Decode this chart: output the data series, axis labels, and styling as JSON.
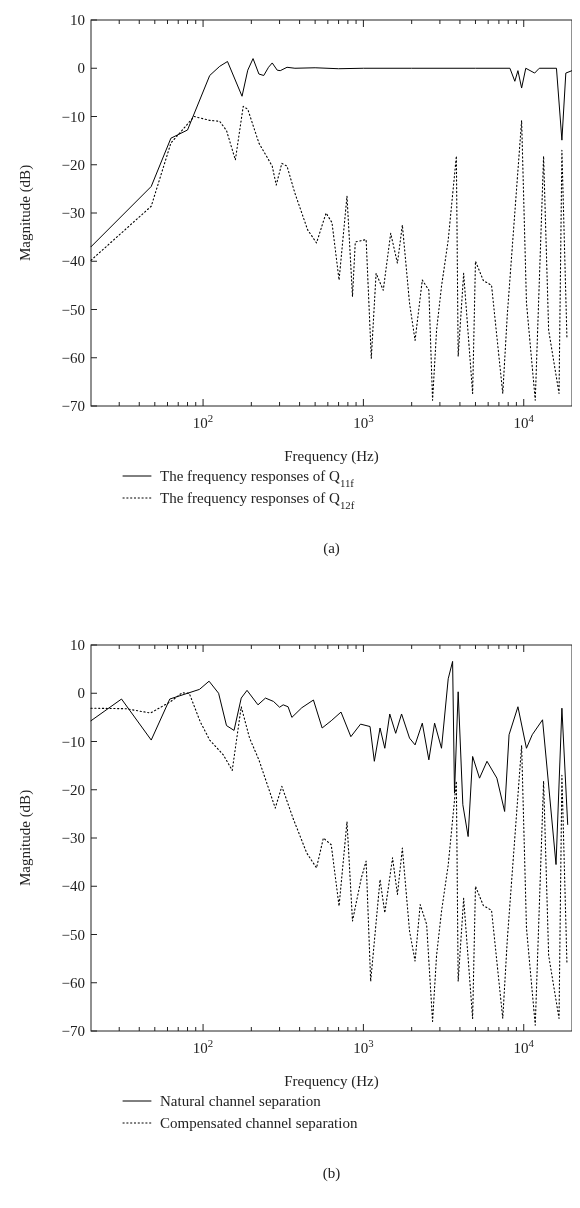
{
  "chart_data": [
    {
      "type": "line",
      "xlabel": "Frequency (Hz)",
      "ylabel": "Magnitude (dB)",
      "log": "x",
      "grid": false,
      "legend": "bottom",
      "xlim": [
        20,
        20000
      ],
      "ylim": [
        -70,
        10
      ],
      "xticks": [
        {
          "value": 30,
          "label": null
        },
        {
          "value": 40,
          "label": null
        },
        {
          "value": 50,
          "label": null
        },
        {
          "value": 60,
          "label": null
        },
        {
          "value": 70,
          "label": null
        },
        {
          "value": 80,
          "label": null
        },
        {
          "value": 90,
          "label": null
        },
        {
          "value": 100,
          "label": "10$^{2}$"
        },
        {
          "value": 200,
          "label": null
        },
        {
          "value": 300,
          "label": null
        },
        {
          "value": 400,
          "label": null
        },
        {
          "value": 500,
          "label": null
        },
        {
          "value": 600,
          "label": null
        },
        {
          "value": 700,
          "label": null
        },
        {
          "value": 800,
          "label": null
        },
        {
          "value": 900,
          "label": null
        },
        {
          "value": 1000,
          "label": "10$^{3}$"
        },
        {
          "value": 2000,
          "label": null
        },
        {
          "value": 3000,
          "label": null
        },
        {
          "value": 4000,
          "label": null
        },
        {
          "value": 5000,
          "label": null
        },
        {
          "value": 6000,
          "label": null
        },
        {
          "value": 7000,
          "label": null
        },
        {
          "value": 8000,
          "label": null
        },
        {
          "value": 9000,
          "label": null
        },
        {
          "value": 10000,
          "label": "10$^{4}$"
        }
      ],
      "yticks": [
        -70,
        -60,
        -50,
        -40,
        -30,
        -20,
        -10,
        0,
        10
      ],
      "annotations": [
        "(a)"
      ],
      "series": [
        {
          "name": "The frequency responses of Q$_{11f}$",
          "color": "#000000",
          "line_style": "solid",
          "x": [
            20,
            47.5,
            63,
            80,
            110,
            127,
            142,
            175,
            190,
            205,
            223,
            239,
            256,
            270,
            290,
            303,
            334,
            374,
            500,
            700,
            1000,
            2000,
            5000,
            8200,
            8800,
            9200,
            9700,
            10300,
            11700,
            12500,
            16000,
            17300,
            18300,
            20000
          ],
          "values": [
            -37,
            -24.5,
            -14.5,
            -12.8,
            -1.5,
            0.4,
            1.4,
            -5.8,
            -0.4,
            2,
            -1.2,
            -1.5,
            0.2,
            1.1,
            -0.4,
            -0.5,
            0.2,
            0,
            0.1,
            -0.1,
            0,
            0,
            0,
            0,
            -2.7,
            -0.5,
            -4.1,
            0,
            -1,
            0,
            0,
            -14.9,
            -1,
            -0.5
          ]
        },
        {
          "name": "The frequency responses of Q$_{12f}$",
          "color": "#000000",
          "line_style": "dotted",
          "x": [
            20,
            47.5,
            63,
            88,
            110,
            127,
            140,
            159,
            178,
            190,
            223,
            270,
            286,
            310,
            334,
            374,
            449,
            510,
            585,
            637,
            705,
            790,
            855,
            890,
            1040,
            1120,
            1200,
            1330,
            1480,
            1630,
            1750,
            1940,
            2100,
            2330,
            2560,
            2700,
            2860,
            3070,
            3380,
            3800,
            3900,
            4220,
            4800,
            5000,
            5600,
            6300,
            7400,
            7900,
            9700,
            10400,
            11800,
            13300,
            14300,
            16600,
            17300,
            18600
          ],
          "values": [
            -39.8,
            -28.6,
            -15.5,
            -10,
            -10.8,
            -11,
            -12.9,
            -19,
            -7.9,
            -8.5,
            -15.5,
            -20.3,
            -24.2,
            -19.7,
            -20.3,
            -25.9,
            -33.5,
            -36.2,
            -30,
            -32,
            -43.9,
            -26.5,
            -47.3,
            -36,
            -35.5,
            -60.1,
            -42.5,
            -46,
            -34.2,
            -40.4,
            -32.5,
            -48.7,
            -56.4,
            -43.9,
            -46,
            -68.8,
            -54.3,
            -45.2,
            -35.6,
            -18.2,
            -59.7,
            -42.5,
            -67.4,
            -40,
            -44,
            -45,
            -67.4,
            -51,
            -10.8,
            -48.6,
            -68.8,
            -18.2,
            -54.3,
            -67.4,
            -17,
            -56
          ]
        }
      ]
    },
    {
      "type": "line",
      "xlabel": "Frequency (Hz)",
      "ylabel": "Magnitude (dB)",
      "log": "x",
      "grid": false,
      "legend": "bottom",
      "xlim": [
        20,
        20000
      ],
      "ylim": [
        -70,
        10
      ],
      "xticks": [
        {
          "value": 30,
          "label": null
        },
        {
          "value": 40,
          "label": null
        },
        {
          "value": 50,
          "label": null
        },
        {
          "value": 60,
          "label": null
        },
        {
          "value": 70,
          "label": null
        },
        {
          "value": 80,
          "label": null
        },
        {
          "value": 90,
          "label": null
        },
        {
          "value": 100,
          "label": "10$^{2}$"
        },
        {
          "value": 200,
          "label": null
        },
        {
          "value": 300,
          "label": null
        },
        {
          "value": 400,
          "label": null
        },
        {
          "value": 500,
          "label": null
        },
        {
          "value": 600,
          "label": null
        },
        {
          "value": 700,
          "label": null
        },
        {
          "value": 800,
          "label": null
        },
        {
          "value": 900,
          "label": null
        },
        {
          "value": 1000,
          "label": "10$^{3}$"
        },
        {
          "value": 2000,
          "label": null
        },
        {
          "value": 3000,
          "label": null
        },
        {
          "value": 4000,
          "label": null
        },
        {
          "value": 5000,
          "label": null
        },
        {
          "value": 6000,
          "label": null
        },
        {
          "value": 7000,
          "label": null
        },
        {
          "value": 8000,
          "label": null
        },
        {
          "value": 9000,
          "label": null
        },
        {
          "value": 10000,
          "label": "10$^{4}$"
        }
      ],
      "yticks": [
        -70,
        -60,
        -50,
        -40,
        -30,
        -20,
        -10,
        0,
        10
      ],
      "annotations": [
        "(b)"
      ],
      "series": [
        {
          "name": "Natural channel separation",
          "color": "#000000",
          "line_style": "solid",
          "x": [
            20,
            31,
            47.5,
            62,
            95,
            109,
            125,
            140,
            156,
            173,
            188,
            220,
            245,
            275,
            300,
            316,
            339,
            358,
            413,
            488,
            553,
            630,
            725,
            835,
            960,
            1100,
            1170,
            1270,
            1360,
            1460,
            1590,
            1730,
            1940,
            2100,
            2330,
            2560,
            2780,
            3070,
            3380,
            3600,
            3700,
            3900,
            4170,
            4500,
            4800,
            5300,
            5900,
            6800,
            7600,
            8100,
            9200,
            10400,
            11300,
            13100,
            15900,
            17300,
            18800
          ],
          "values": [
            -5.7,
            -1.2,
            -9.7,
            -1.2,
            0.8,
            2.5,
            0,
            -6.7,
            -7.7,
            -1,
            0.6,
            -2.4,
            -1,
            -1.7,
            -2.9,
            -2.4,
            -2.8,
            -5,
            -3,
            -1.4,
            -7.2,
            -5.7,
            -3.9,
            -9,
            -6.4,
            -6.9,
            -14.1,
            -7.2,
            -11.4,
            -4.3,
            -8.3,
            -4.3,
            -9.3,
            -10.7,
            -6.2,
            -13.8,
            -6.2,
            -11.4,
            3,
            6.6,
            -20.7,
            0.3,
            -23.1,
            -29.7,
            -13.1,
            -17.6,
            -14.1,
            -17.6,
            -24.5,
            -8.6,
            -2.8,
            -11.4,
            -8.6,
            -5.5,
            -35.5,
            -3.1,
            -27.2
          ]
        },
        {
          "name": "Compensated channel separation",
          "color": "#000000",
          "line_style": "dotted",
          "x": [
            20,
            33,
            47,
            63,
            74,
            82,
            96,
            110,
            134,
            152,
            173,
            195,
            223,
            282,
            310,
            364,
            443,
            510,
            563,
            630,
            705,
            790,
            855,
            970,
            1040,
            1110,
            1270,
            1360,
            1520,
            1630,
            1750,
            1940,
            2100,
            2260,
            2480,
            2700,
            2860,
            3070,
            3380,
            3800,
            3900,
            4220,
            4800,
            5000,
            5600,
            6300,
            7400,
            7900,
            9700,
            10400,
            11800,
            13300,
            14300,
            16600,
            17300,
            18600
          ],
          "values": [
            -3.1,
            -3.2,
            -4.1,
            -1.7,
            0.1,
            0,
            -5.9,
            -9.7,
            -12.8,
            -16,
            -2.8,
            -9.3,
            -13.8,
            -23.8,
            -19.3,
            -25.9,
            -33.1,
            -36.2,
            -30,
            -31.4,
            -44.1,
            -26.6,
            -47.2,
            -38.3,
            -34.8,
            -59.7,
            -38.6,
            -45.5,
            -34.1,
            -41.7,
            -32.1,
            -49.3,
            -55.5,
            -43.8,
            -47.9,
            -68,
            -54.3,
            -45.2,
            -35.6,
            -18.2,
            -59.7,
            -42.5,
            -67.4,
            -40,
            -44,
            -45,
            -67.4,
            -51,
            -10.8,
            -48.6,
            -68.8,
            -18.2,
            -54.3,
            -67.4,
            -17,
            -56
          ]
        }
      ]
    }
  ]
}
